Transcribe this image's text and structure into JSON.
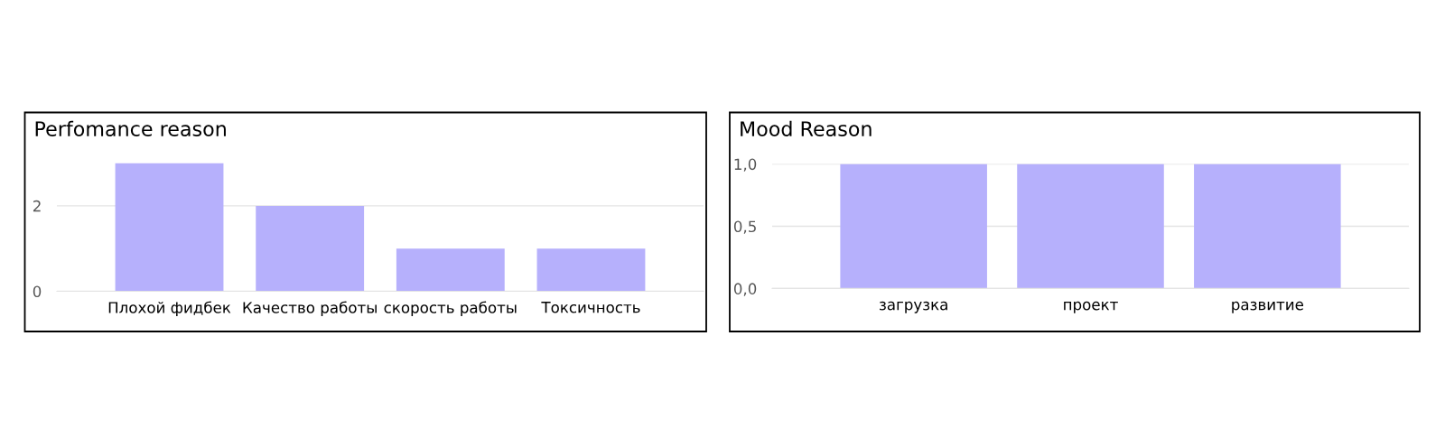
{
  "chart_data": [
    {
      "type": "bar",
      "title": "Perfomance reason",
      "categories": [
        "Плохой фидбек",
        "Качество работы",
        "скорость работы",
        "Токсичность"
      ],
      "values": [
        3,
        2,
        1,
        1
      ],
      "color": "#b6b0fc",
      "ylim": [
        0,
        3
      ],
      "yticks": [
        0,
        2
      ],
      "grid": "y"
    },
    {
      "type": "bar",
      "title": "Mood Reason",
      "categories": [
        "загрузка",
        "проект",
        "развитие"
      ],
      "values": [
        1,
        1,
        1
      ],
      "color": "#b6b0fc",
      "ylim": [
        0,
        1
      ],
      "yticks": [
        {
          "value": 0,
          "label": "0,0"
        },
        {
          "value": 0.5,
          "label": "0,5"
        },
        {
          "value": 1,
          "label": "1,0"
        }
      ],
      "grid": "y"
    }
  ]
}
